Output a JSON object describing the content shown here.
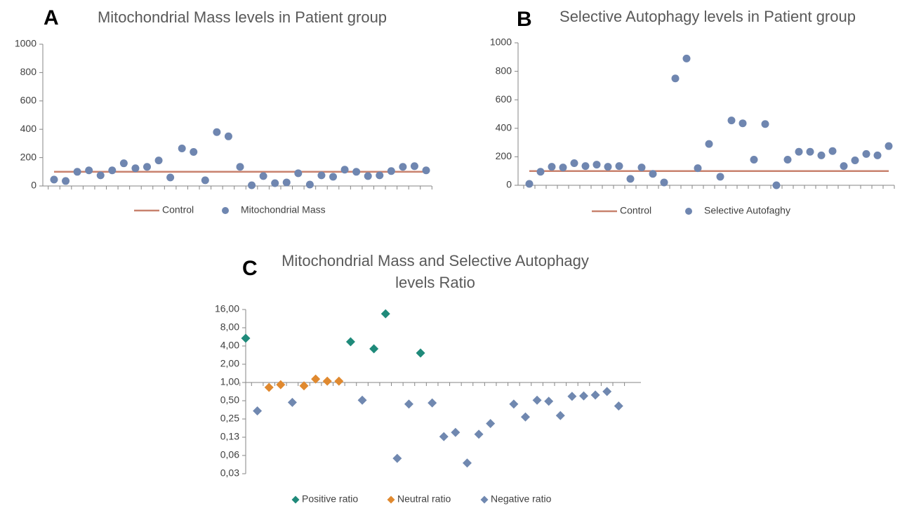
{
  "chart_data": [
    {
      "type": "scatter",
      "panel": "A",
      "title": "Mitochondrial Mass levels in Patient group",
      "categories": [
        null,
        null,
        null,
        null,
        null,
        null,
        null,
        null,
        null,
        null,
        null,
        null,
        null,
        null,
        null,
        null,
        null,
        null,
        null,
        null,
        null,
        null,
        null,
        null,
        null,
        null,
        null,
        null,
        null,
        null,
        null,
        null,
        null
      ],
      "series": [
        {
          "name": "Control",
          "mark": "line",
          "color": "#c8826e",
          "values": [
            100,
            100,
            100,
            100,
            100,
            100,
            100,
            100,
            100,
            100,
            100,
            100,
            100,
            100,
            100,
            100,
            100,
            100,
            100,
            100,
            100,
            100,
            100,
            100,
            100,
            100,
            100,
            100,
            100,
            100,
            100,
            100,
            100
          ]
        },
        {
          "name": "Mitochondrial Mass",
          "mark": "circle",
          "color": "#6f86b0",
          "values": [
            45,
            35,
            100,
            110,
            75,
            110,
            160,
            125,
            135,
            180,
            60,
            265,
            240,
            40,
            380,
            350,
            135,
            5,
            70,
            20,
            25,
            90,
            10,
            75,
            65,
            115,
            100,
            70,
            75,
            105,
            135,
            140,
            110
          ]
        }
      ],
      "ylim": [
        0,
        1000
      ],
      "yticks": [
        0,
        200,
        400,
        600,
        800,
        1000
      ],
      "grid": false,
      "legend": "bottom"
    },
    {
      "type": "scatter",
      "panel": "B",
      "title": "Selective Autophagy levels in Patient group",
      "categories": [
        null,
        null,
        null,
        null,
        null,
        null,
        null,
        null,
        null,
        null,
        null,
        null,
        null,
        null,
        null,
        null,
        null,
        null,
        null,
        null,
        null,
        null,
        null,
        null,
        null,
        null,
        null,
        null,
        null,
        null,
        null,
        null,
        null
      ],
      "series": [
        {
          "name": "Control",
          "mark": "line",
          "color": "#c8826e",
          "values": [
            100,
            100,
            100,
            100,
            100,
            100,
            100,
            100,
            100,
            100,
            100,
            100,
            100,
            100,
            100,
            100,
            100,
            100,
            100,
            100,
            100,
            100,
            100,
            100,
            100,
            100,
            100,
            100,
            100,
            100,
            100,
            100,
            100
          ]
        },
        {
          "name": "Selective Autofaghy",
          "mark": "circle",
          "color": "#6f86b0",
          "values": [
            10,
            95,
            130,
            125,
            155,
            135,
            145,
            130,
            135,
            45,
            125,
            80,
            20,
            750,
            890,
            120,
            290,
            60,
            455,
            435,
            180,
            430,
            0,
            180,
            235,
            235,
            210,
            240,
            135,
            175,
            220,
            210,
            275
          ]
        }
      ],
      "ylim": [
        0,
        1000
      ],
      "yticks": [
        0,
        200,
        400,
        600,
        800,
        1000
      ],
      "grid": false,
      "legend": "bottom"
    },
    {
      "type": "scatter",
      "panel": "C",
      "title": "Mitochondrial Mass and Selective Autophagy levels Ratio",
      "categories": [
        null,
        null,
        null,
        null,
        null,
        null,
        null,
        null,
        null,
        null,
        null,
        null,
        null,
        null,
        null,
        null,
        null,
        null,
        null,
        null,
        null,
        null,
        null,
        null,
        null,
        null,
        null,
        null,
        null,
        null,
        null,
        null,
        null
      ],
      "series": [
        {
          "name": "Positive ratio",
          "mark": "diamond",
          "color": "#1f8a7a",
          "values": [
            5.36,
            null,
            null,
            null,
            null,
            null,
            null,
            null,
            null,
            4.7,
            null,
            3.6,
            13.6,
            null,
            null,
            3.06,
            null,
            null,
            null,
            null,
            null,
            null,
            null,
            null,
            null,
            null,
            null,
            null,
            null,
            null,
            null,
            null,
            null
          ]
        },
        {
          "name": "Neutral ratio",
          "mark": "diamond",
          "color": "#e0892f",
          "values": [
            null,
            null,
            0.83,
            0.92,
            null,
            0.88,
            1.14,
            1.05,
            1.05,
            null,
            null,
            null,
            null,
            null,
            null,
            null,
            null,
            null,
            null,
            null,
            null,
            null,
            null,
            null,
            null,
            null,
            null,
            null,
            null,
            null,
            null,
            null,
            null
          ]
        },
        {
          "name": "Negative ratio",
          "mark": "diamond",
          "color": "#7088b0",
          "values": [
            null,
            0.34,
            null,
            null,
            0.47,
            null,
            null,
            null,
            null,
            null,
            0.51,
            null,
            null,
            0.056,
            0.44,
            null,
            0.46,
            0.128,
            0.15,
            0.047,
            0.14,
            0.21,
            null,
            0.44,
            0.27,
            0.51,
            0.49,
            0.285,
            0.59,
            0.6,
            0.62,
            0.71,
            0.41
          ]
        }
      ],
      "yscale": "log",
      "ylim": [
        0.03125,
        16
      ],
      "yticks": [
        {
          "value": 16,
          "label": "16,00"
        },
        {
          "value": 8,
          "label": "8,00"
        },
        {
          "value": 4,
          "label": "4,00"
        },
        {
          "value": 2,
          "label": "2,00"
        },
        {
          "value": 1,
          "label": "1,00"
        },
        {
          "value": 0.5,
          "label": "0,50"
        },
        {
          "value": 0.25,
          "label": "0,25"
        },
        {
          "value": 0.125,
          "label": "0,13"
        },
        {
          "value": 0.0625,
          "label": "0,06"
        },
        {
          "value": 0.03125,
          "label": "0,03"
        }
      ],
      "grid": false,
      "legend": "bottom"
    }
  ]
}
